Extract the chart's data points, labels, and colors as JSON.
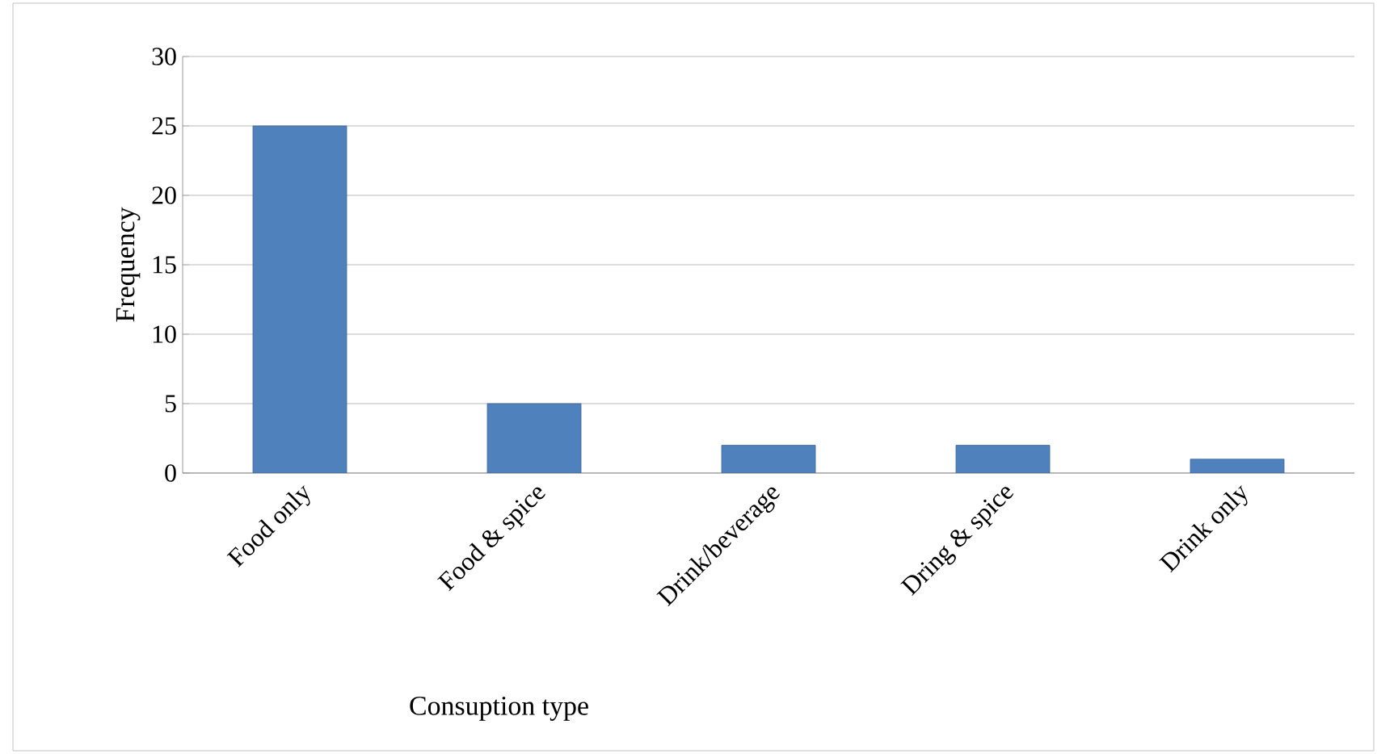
{
  "chart_data": {
    "type": "bar",
    "xlabel": "Consuption type",
    "ylabel": "Frequency",
    "categories": [
      "Food only",
      "Food & spice",
      "Drink/beverage",
      "Dring & spice",
      "Drink only"
    ],
    "values": [
      25,
      5,
      2,
      2,
      1
    ],
    "color": "#4f81bd",
    "ylim": [
      0,
      30
    ],
    "yticks": [
      0,
      5,
      10,
      15,
      20,
      25,
      30
    ],
    "grid": "y"
  }
}
